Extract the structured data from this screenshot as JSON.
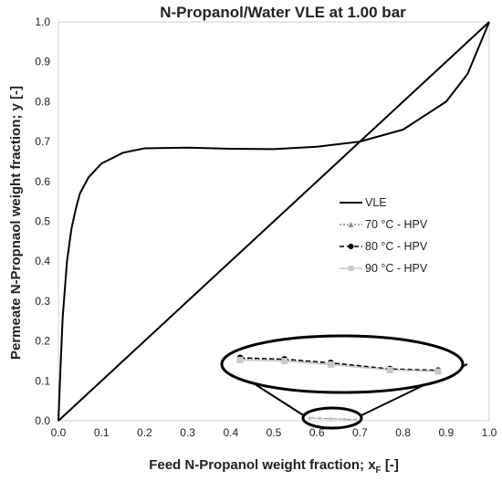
{
  "chart_data": {
    "type": "line",
    "title": "N-Propanol/Water VLE at 1.00 bar",
    "xlabel": "Feed N-Propanol weight fraction; x",
    "xlabel_subscript": "F",
    "xlabel_suffix": " [-]",
    "ylabel": "Permeate N-Propnaol weight fraction; y  [-]",
    "xlim": [
      0,
      1
    ],
    "ylim": [
      0,
      1
    ],
    "xticks": [
      "0.0",
      "0.1",
      "0.2",
      "0.3",
      "0.4",
      "0.5",
      "0.6",
      "0.7",
      "0.8",
      "0.9",
      "1.0"
    ],
    "yticks": [
      "0.0",
      "0.1",
      "0.2",
      "0.3",
      "0.4",
      "0.5",
      "0.6",
      "0.7",
      "0.8",
      "0.9",
      "1.0"
    ],
    "grid": false,
    "legend_position": "right-middle",
    "series": [
      {
        "name": "VLE",
        "style": "solid",
        "color": "#000000",
        "x": [
          0,
          0.005,
          0.01,
          0.02,
          0.03,
          0.04,
          0.05,
          0.07,
          0.1,
          0.15,
          0.2,
          0.3,
          0.4,
          0.5,
          0.6,
          0.7,
          0.8,
          0.9,
          0.95,
          1.0
        ],
        "y": [
          0,
          0.14,
          0.26,
          0.4,
          0.48,
          0.53,
          0.57,
          0.61,
          0.645,
          0.672,
          0.683,
          0.685,
          0.682,
          0.681,
          0.687,
          0.7,
          0.73,
          0.8,
          0.87,
          1.0
        ]
      },
      {
        "name": "Diagonal",
        "style": "solid",
        "color": "#000000",
        "x": [
          0,
          1
        ],
        "y": [
          0,
          1
        ]
      },
      {
        "name": "70 °C - HPV",
        "style": "dotted",
        "color": "#888888",
        "marker": "triangle",
        "x": [
          0.583,
          0.607,
          0.632,
          0.664,
          0.69
        ],
        "y": [
          0.0062,
          0.0058,
          0.0048,
          0.0032,
          0.0028
        ]
      },
      {
        "name": "80 °C - HPV",
        "style": "dashed",
        "color": "#000000",
        "marker": "circle",
        "x": [
          0.583,
          0.607,
          0.632,
          0.664,
          0.69
        ],
        "y": [
          0.0064,
          0.006,
          0.005,
          0.0033,
          0.0029
        ]
      },
      {
        "name": "90 °C - HPV",
        "style": "solid",
        "color": "#c8c8c8",
        "marker": "square",
        "x": [
          0.583,
          0.607,
          0.632,
          0.664,
          0.69
        ],
        "y": [
          0.0058,
          0.0055,
          0.0045,
          0.003,
          0.0026
        ]
      }
    ],
    "inset_zoom": {
      "shape": "ellipse",
      "zoom_region_center": [
        0.637,
        0.003
      ],
      "note_points": "magnified view of HPV data"
    }
  }
}
